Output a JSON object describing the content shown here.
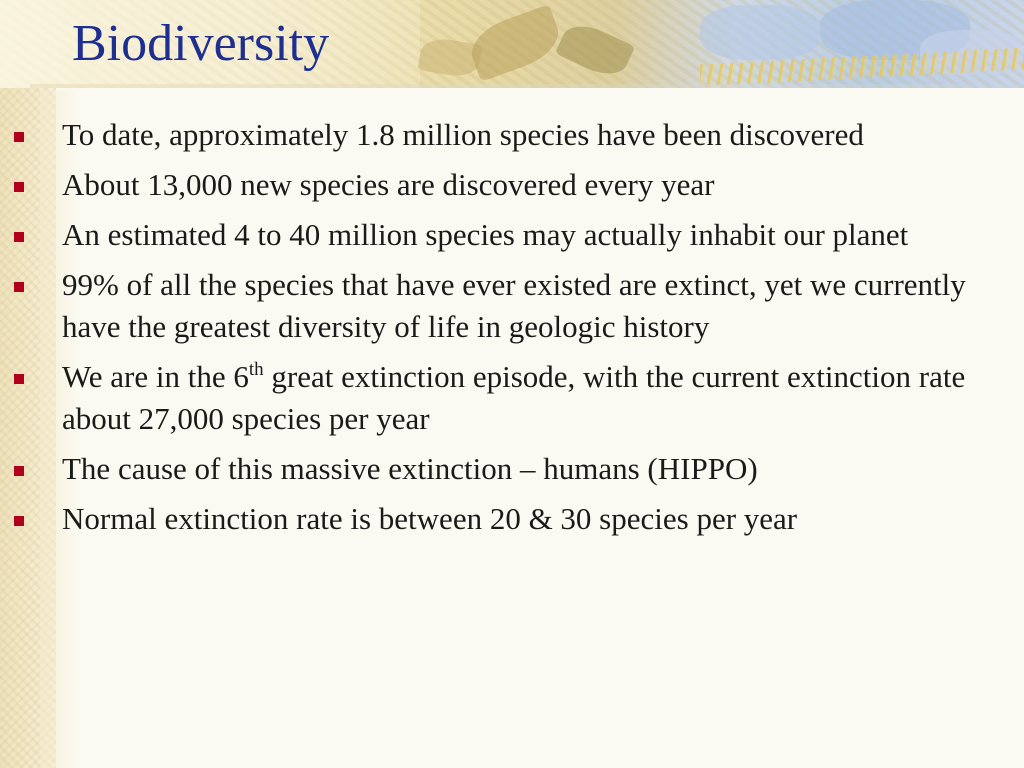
{
  "slide": {
    "title": "Biodiversity",
    "bullet_color": "#b0001e",
    "title_color": "#1f2f8f",
    "bullets": [
      "To date, approximately 1.8 million species have been discovered",
      "About 13,000 new species are discovered every year",
      "An estimated 4 to 40 million species may actually inhabit our planet",
      "99% of all the species that have ever existed are extinct, yet we currently have the greatest diversity of life in geologic history",
      {
        "before": "We are in the 6",
        "sup": "th",
        "after": " great extinction episode, with the current extinction rate about 27,000 species per year"
      },
      "The cause of this massive extinction – humans (HIPPO)",
      "Normal extinction rate is between 20 & 30 species per year"
    ]
  }
}
